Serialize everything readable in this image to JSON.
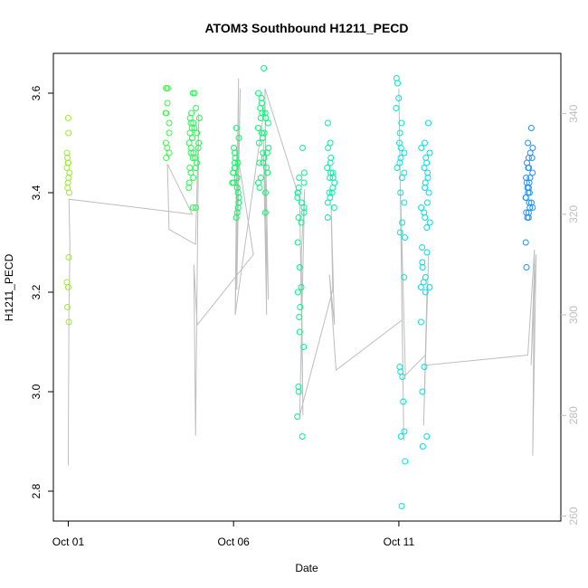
{
  "chart_data": {
    "type": "scatter",
    "title": "ATOM3 Southbound H1211_PECD",
    "xlabel": "Date",
    "ylabel": "H1211_PECD",
    "x_ticks": [
      "Oct 01",
      "Oct 06",
      "Oct 11"
    ],
    "x_tick_days": [
      1,
      6,
      11
    ],
    "xlim_days": [
      0.55,
      15.9
    ],
    "ylim": [
      2.74,
      3.68
    ],
    "y_ticks": [
      2.8,
      3.0,
      3.2,
      3.4,
      3.6
    ],
    "y2_label": "",
    "y2_ticks": [
      260,
      280,
      300,
      320,
      340
    ],
    "y2lim": [
      259,
      352
    ],
    "colors": {
      "axis": "#000000",
      "secondary_axis": "#bebebe",
      "line": "#bebebe",
      "point_gradient": [
        "#9AEE2C",
        "#1E90FF"
      ]
    },
    "points": {
      "clusters": [
        {
          "day": 1.0,
          "spread": 0.05,
          "values": [
            3.55,
            3.52,
            3.48,
            3.47,
            3.46,
            3.46,
            3.45,
            3.44,
            3.43,
            3.42,
            3.41,
            3.4,
            3.27,
            3.22,
            3.21,
            3.17,
            3.14
          ]
        },
        {
          "day": 4.0,
          "spread": 0.06,
          "values": [
            3.61,
            3.61,
            3.58,
            3.56,
            3.56,
            3.54,
            3.52,
            3.5,
            3.49,
            3.48,
            3.47
          ]
        },
        {
          "day": 4.8,
          "spread": 0.17,
          "values": [
            3.6,
            3.6,
            3.57,
            3.56,
            3.55,
            3.55,
            3.54,
            3.54,
            3.53,
            3.53,
            3.52,
            3.52,
            3.51,
            3.51,
            3.5,
            3.5,
            3.49,
            3.49,
            3.48,
            3.48,
            3.47,
            3.47,
            3.46,
            3.45,
            3.45,
            3.44,
            3.43,
            3.42,
            3.41,
            3.37,
            3.37
          ]
        },
        {
          "day": 6.05,
          "spread": 0.12,
          "values": [
            3.53,
            3.51,
            3.49,
            3.48,
            3.47,
            3.46,
            3.46,
            3.45,
            3.45,
            3.44,
            3.44,
            3.43,
            3.42,
            3.42,
            3.41,
            3.4,
            3.39,
            3.38,
            3.37,
            3.36,
            3.35
          ]
        },
        {
          "day": 6.9,
          "spread": 0.16,
          "values": [
            3.65,
            3.6,
            3.59,
            3.58,
            3.57,
            3.56,
            3.56,
            3.55,
            3.55,
            3.54,
            3.53,
            3.52,
            3.52,
            3.51,
            3.5,
            3.49,
            3.48,
            3.48,
            3.47,
            3.46,
            3.46,
            3.45,
            3.44,
            3.43,
            3.42,
            3.41,
            3.4,
            3.36
          ]
        },
        {
          "day": 8.05,
          "spread": 0.12,
          "values": [
            3.49,
            3.44,
            3.43,
            3.42,
            3.41,
            3.4,
            3.4,
            3.39,
            3.38,
            3.37,
            3.36,
            3.35,
            3.34,
            3.3,
            3.25,
            3.21,
            3.2,
            3.17,
            3.15,
            3.12,
            3.09,
            3.01,
            3.0,
            2.95,
            2.91
          ]
        },
        {
          "day": 8.95,
          "spread": 0.12,
          "values": [
            3.54,
            3.5,
            3.49,
            3.47,
            3.46,
            3.45,
            3.44,
            3.44,
            3.43,
            3.43,
            3.42,
            3.41,
            3.4,
            3.4,
            3.39,
            3.38,
            3.37,
            3.35
          ]
        },
        {
          "day": 11.05,
          "spread": 0.14,
          "values": [
            3.63,
            3.62,
            3.59,
            3.57,
            3.54,
            3.52,
            3.5,
            3.49,
            3.48,
            3.47,
            3.46,
            3.45,
            3.44,
            3.43,
            3.4,
            3.38,
            3.34,
            3.32,
            3.31,
            3.23,
            3.05,
            3.04,
            3.03,
            2.98,
            2.92,
            2.91,
            2.86,
            2.77
          ]
        },
        {
          "day": 11.8,
          "spread": 0.14,
          "values": [
            3.54,
            3.5,
            3.49,
            3.48,
            3.47,
            3.46,
            3.45,
            3.44,
            3.43,
            3.42,
            3.41,
            3.4,
            3.38,
            3.37,
            3.36,
            3.35,
            3.34,
            3.33,
            3.29,
            3.28,
            3.26,
            3.25,
            3.23,
            3.22,
            3.21,
            3.21,
            3.2,
            3.14,
            3.05,
            3.0,
            2.91,
            2.89
          ]
        },
        {
          "day": 14.95,
          "spread": 0.12,
          "values": [
            3.53,
            3.5,
            3.49,
            3.48,
            3.47,
            3.47,
            3.46,
            3.45,
            3.45,
            3.44,
            3.43,
            3.43,
            3.42,
            3.42,
            3.41,
            3.41,
            3.4,
            3.4,
            3.39,
            3.39,
            3.38,
            3.38,
            3.37,
            3.37,
            3.36,
            3.36,
            3.35,
            3.35,
            3.3,
            3.25
          ]
        }
      ]
    },
    "secondary_line": {
      "name": "",
      "x_days": [
        1.0,
        1.02,
        1.05,
        1.02,
        4.75,
        4.0,
        4.05,
        4.85,
        4.95,
        4.85,
        4.8,
        4.9,
        6.6,
        6.1,
        6.05,
        6.15,
        6.1,
        6.2,
        6.05,
        6.95,
        7.05,
        6.9,
        7.0,
        6.95,
        8.0,
        8.1,
        8.05,
        8.15,
        8.0,
        9.0,
        8.95,
        9.05,
        8.9,
        9.1,
        11.1,
        11.0,
        11.15,
        11.05,
        11.2,
        11.8,
        11.9,
        11.75,
        11.85,
        11.8,
        14.9,
        15.1,
        15.05,
        15.15,
        15.0,
        15.1
      ],
      "values": [
        270,
        300,
        314,
        323,
        320,
        330,
        317,
        314,
        340,
        276,
        310,
        298,
        312,
        333,
        300,
        347,
        305,
        345,
        300,
        342,
        303,
        335,
        300,
        345,
        323,
        280,
        312,
        325,
        280,
        305,
        322,
        298,
        308,
        289,
        299,
        345,
        275,
        325,
        288,
        292,
        312,
        278,
        305,
        290,
        292,
        313,
        272,
        312,
        290,
        310
      ]
    }
  }
}
